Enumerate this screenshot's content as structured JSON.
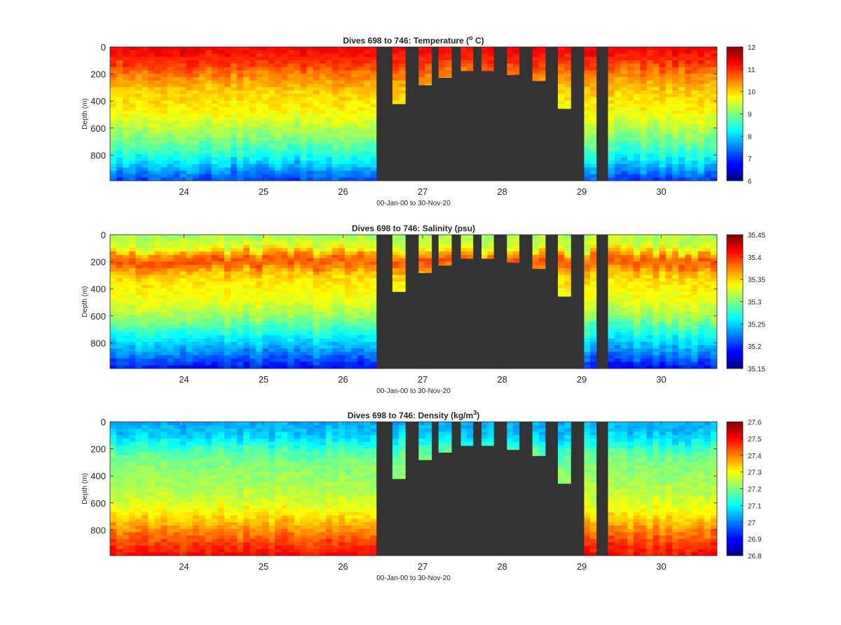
{
  "figure_title": "",
  "chart_data": [
    {
      "type": "heatmap",
      "title": "Dives 698 to 746: Temperature (o C)",
      "title_parts": [
        "Dives 698 to 746: Temperature (",
        "o",
        " C)"
      ],
      "xlabel": "00-Jan-00 to 30-Nov-20",
      "ylabel": "Depth (m)",
      "xlim": [
        23.07,
        30.7
      ],
      "ylim": [
        990,
        0
      ],
      "xticks": [
        "24",
        "25",
        "26",
        "27",
        "28",
        "29",
        "30"
      ],
      "yticks": [
        "0",
        "200",
        "400",
        "600",
        "800"
      ],
      "colorbar": {
        "min": 6,
        "max": 12,
        "ticks": [
          "6",
          "7",
          "8",
          "9",
          "10",
          "11",
          "12"
        ]
      },
      "missing_color": "#333333",
      "profile": [
        {
          "depth": 0,
          "value": 11.3
        },
        {
          "depth": 100,
          "value": 11.0
        },
        {
          "depth": 200,
          "value": 10.5
        },
        {
          "depth": 300,
          "value": 10.1
        },
        {
          "depth": 400,
          "value": 9.9
        },
        {
          "depth": 500,
          "value": 9.7
        },
        {
          "depth": 600,
          "value": 9.3
        },
        {
          "depth": 700,
          "value": 8.9
        },
        {
          "depth": 800,
          "value": 8.4
        },
        {
          "depth": 900,
          "value": 7.7
        },
        {
          "depth": 990,
          "value": 7.1
        }
      ],
      "gap": {
        "start": 26.42,
        "end": 30.75
      },
      "shallow_dives": [
        {
          "x": [
            26.62,
            26.78
          ],
          "max_depth": 420
        },
        {
          "x": [
            26.95,
            27.11
          ],
          "max_depth": 280
        },
        {
          "x": [
            27.2,
            27.36
          ],
          "max_depth": 225
        },
        {
          "x": [
            27.48,
            27.63
          ],
          "max_depth": 175
        },
        {
          "x": [
            27.74,
            27.89
          ],
          "max_depth": 175
        },
        {
          "x": [
            28.06,
            28.21
          ],
          "max_depth": 205
        },
        {
          "x": [
            28.38,
            28.54
          ],
          "max_depth": 250
        },
        {
          "x": [
            28.7,
            28.86
          ],
          "max_depth": 455
        }
      ],
      "full_dives": [
        {
          "x": [
            29.03,
            29.18
          ],
          "max_depth": 990
        },
        {
          "x": [
            29.33,
            30.7
          ],
          "max_depth": 990
        }
      ]
    },
    {
      "type": "heatmap",
      "title": "Dives 698 to 746: Salinity (psu)",
      "title_parts": [
        "Dives 698 to 746: Salinity (psu)"
      ],
      "xlabel": "00-Jan-00 to 30-Nov-20",
      "ylabel": "Depth (m)",
      "xlim": [
        23.07,
        30.7
      ],
      "ylim": [
        990,
        0
      ],
      "xticks": [
        "24",
        "25",
        "26",
        "27",
        "28",
        "29",
        "30"
      ],
      "yticks": [
        "0",
        "200",
        "400",
        "600",
        "800"
      ],
      "colorbar": {
        "min": 35.15,
        "max": 35.45,
        "ticks": [
          "35.15",
          "35.2",
          "35.25",
          "35.3",
          "35.35",
          "35.4",
          "35.45"
        ]
      },
      "missing_color": "#333333",
      "profile": [
        {
          "depth": 0,
          "value": 35.31
        },
        {
          "depth": 100,
          "value": 35.33
        },
        {
          "depth": 150,
          "value": 35.37
        },
        {
          "depth": 200,
          "value": 35.39
        },
        {
          "depth": 250,
          "value": 35.37
        },
        {
          "depth": 300,
          "value": 35.35
        },
        {
          "depth": 400,
          "value": 35.34
        },
        {
          "depth": 500,
          "value": 35.33
        },
        {
          "depth": 600,
          "value": 35.31
        },
        {
          "depth": 700,
          "value": 35.28
        },
        {
          "depth": 800,
          "value": 35.25
        },
        {
          "depth": 900,
          "value": 35.22
        },
        {
          "depth": 990,
          "value": 35.19
        }
      ],
      "gap": {
        "start": 26.42,
        "end": 30.75
      },
      "shallow_dives": [
        {
          "x": [
            26.62,
            26.78
          ],
          "max_depth": 420
        },
        {
          "x": [
            26.95,
            27.11
          ],
          "max_depth": 280
        },
        {
          "x": [
            27.2,
            27.36
          ],
          "max_depth": 225
        },
        {
          "x": [
            27.48,
            27.63
          ],
          "max_depth": 175
        },
        {
          "x": [
            27.74,
            27.89
          ],
          "max_depth": 175
        },
        {
          "x": [
            28.06,
            28.21
          ],
          "max_depth": 205
        },
        {
          "x": [
            28.38,
            28.54
          ],
          "max_depth": 250
        },
        {
          "x": [
            28.7,
            28.86
          ],
          "max_depth": 455
        }
      ],
      "full_dives": [
        {
          "x": [
            29.03,
            29.18
          ],
          "max_depth": 990
        },
        {
          "x": [
            29.33,
            30.7
          ],
          "max_depth": 990
        }
      ]
    },
    {
      "type": "heatmap",
      "title": "Dives 698 to 746: Density (kg/m3)",
      "title_parts": [
        "Dives 698 to 746: Density (kg/m",
        "3",
        ")"
      ],
      "xlabel": "00-Jan-00 to 30-Nov-20",
      "ylabel": "Depth (m)",
      "xlim": [
        23.07,
        30.7
      ],
      "ylim": [
        990,
        0
      ],
      "xticks": [
        "24",
        "25",
        "26",
        "27",
        "28",
        "29",
        "30"
      ],
      "yticks": [
        "0",
        "200",
        "400",
        "600",
        "800"
      ],
      "colorbar": {
        "min": 26.8,
        "max": 27.6,
        "ticks": [
          "26.8",
          "26.9",
          "27",
          "27.1",
          "27.2",
          "27.3",
          "27.4",
          "27.5",
          "27.6"
        ]
      },
      "missing_color": "#333333",
      "profile": [
        {
          "depth": 0,
          "value": 27.03
        },
        {
          "depth": 100,
          "value": 27.06
        },
        {
          "depth": 200,
          "value": 27.15
        },
        {
          "depth": 300,
          "value": 27.2
        },
        {
          "depth": 400,
          "value": 27.22
        },
        {
          "depth": 500,
          "value": 27.24
        },
        {
          "depth": 600,
          "value": 27.27
        },
        {
          "depth": 700,
          "value": 27.32
        },
        {
          "depth": 800,
          "value": 27.39
        },
        {
          "depth": 900,
          "value": 27.45
        },
        {
          "depth": 990,
          "value": 27.5
        }
      ],
      "gap": {
        "start": 26.42,
        "end": 30.75
      },
      "shallow_dives": [
        {
          "x": [
            26.62,
            26.78
          ],
          "max_depth": 420
        },
        {
          "x": [
            26.95,
            27.11
          ],
          "max_depth": 280
        },
        {
          "x": [
            27.2,
            27.36
          ],
          "max_depth": 225
        },
        {
          "x": [
            27.48,
            27.63
          ],
          "max_depth": 175
        },
        {
          "x": [
            27.74,
            27.89
          ],
          "max_depth": 175
        },
        {
          "x": [
            28.06,
            28.21
          ],
          "max_depth": 205
        },
        {
          "x": [
            28.38,
            28.54
          ],
          "max_depth": 250
        },
        {
          "x": [
            28.7,
            28.86
          ],
          "max_depth": 455
        }
      ],
      "full_dives": [
        {
          "x": [
            29.03,
            29.18
          ],
          "max_depth": 990
        },
        {
          "x": [
            29.33,
            30.7
          ],
          "max_depth": 990
        }
      ]
    }
  ]
}
